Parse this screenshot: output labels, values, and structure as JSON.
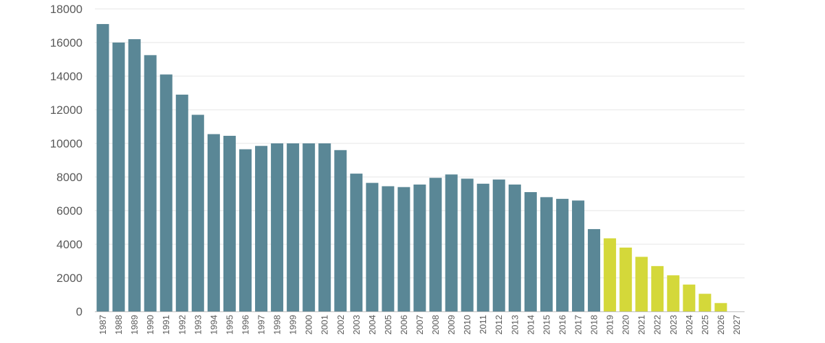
{
  "chart_data": {
    "type": "bar",
    "title": "",
    "xlabel": "",
    "ylabel": "",
    "ylim": [
      0,
      18000
    ],
    "yticks": [
      0,
      2000,
      4000,
      6000,
      8000,
      10000,
      12000,
      14000,
      16000,
      18000
    ],
    "grid": true,
    "legend": "none",
    "categories": [
      "1987",
      "1988",
      "1989",
      "1990",
      "1991",
      "1992",
      "1993",
      "1994",
      "1995",
      "1996",
      "1997",
      "1998",
      "1999",
      "2000",
      "2001",
      "2002",
      "2003",
      "2004",
      "2005",
      "2006",
      "2007",
      "2008",
      "2009",
      "2010",
      "2011",
      "2012",
      "2013",
      "2014",
      "2015",
      "2016",
      "2017",
      "2018",
      "2019",
      "2020",
      "2021",
      "2022",
      "2023",
      "2024",
      "2025",
      "2026",
      "2027"
    ],
    "series": [
      {
        "color": "#5a8796",
        "values": [
          17100,
          16000,
          16200,
          15250,
          14100,
          12900,
          11700,
          10550,
          10450,
          9650,
          9850,
          10000,
          10000,
          10000,
          10000,
          9600,
          8200,
          7650,
          7450,
          7400,
          7550,
          7950,
          8150,
          7900,
          7600,
          7850,
          7550,
          7100,
          6800,
          6700,
          6600,
          4900,
          null,
          null,
          null,
          null,
          null,
          null,
          null,
          null,
          null
        ]
      },
      {
        "color": "#d4d83a",
        "values": [
          null,
          null,
          null,
          null,
          null,
          null,
          null,
          null,
          null,
          null,
          null,
          null,
          null,
          null,
          null,
          null,
          null,
          null,
          null,
          null,
          null,
          null,
          null,
          null,
          null,
          null,
          null,
          null,
          null,
          null,
          null,
          null,
          4350,
          3800,
          3250,
          2700,
          2150,
          1600,
          1050,
          500,
          0
        ]
      }
    ]
  }
}
